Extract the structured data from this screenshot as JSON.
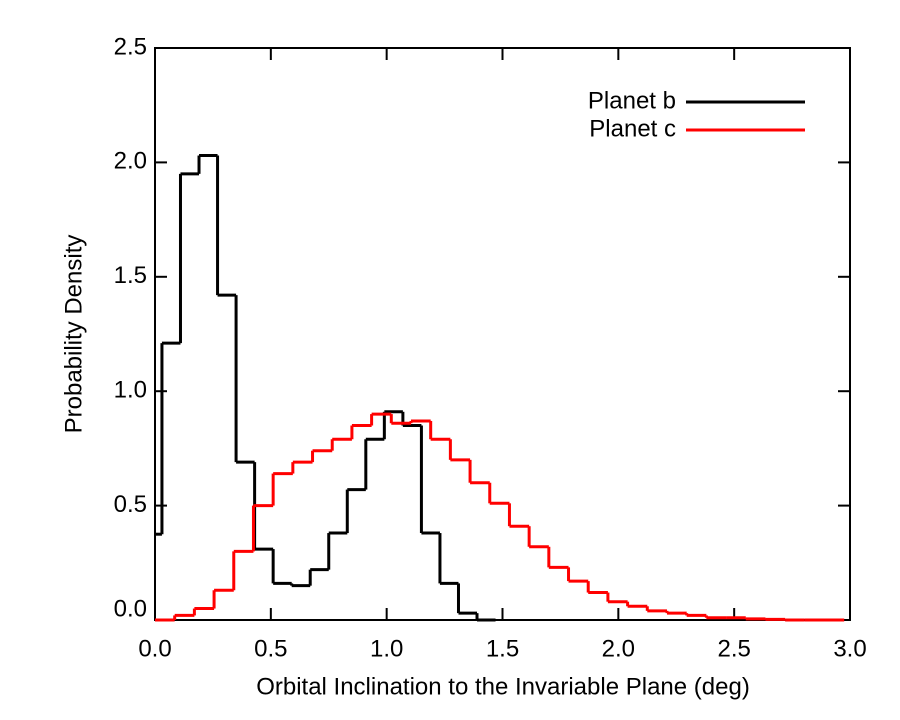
{
  "chart_data": {
    "type": "histogram",
    "xlabel": "Orbital Inclination to the Invariable Plane (deg)",
    "ylabel": "Probability Density",
    "xlim": [
      0,
      3
    ],
    "ylim": [
      0,
      2.5
    ],
    "xticks": [
      {
        "value": 0,
        "label": "0.0"
      },
      {
        "value": 0.5,
        "label": "0.5"
      },
      {
        "value": 1,
        "label": "1.0"
      },
      {
        "value": 1.5,
        "label": "1.5"
      },
      {
        "value": 2,
        "label": "2.0"
      },
      {
        "value": 2.5,
        "label": "2.5"
      },
      {
        "value": 3,
        "label": "3.0"
      }
    ],
    "yticks": [
      {
        "value": 0,
        "label": "0.0"
      },
      0.5,
      {
        "value": 1,
        "label": "1.0"
      },
      1.5,
      {
        "value": 2,
        "label": "2.0"
      },
      2.5
    ],
    "legend": "upper right",
    "series": [
      {
        "name": "Planet b",
        "color": "#000000",
        "bins": [
          0,
          0.03,
          0.11,
          0.19,
          0.27,
          0.35,
          0.43,
          0.51,
          0.59,
          0.67,
          0.75,
          0.83,
          0.91,
          0.99,
          1.07,
          1.15,
          1.23,
          1.31,
          1.39,
          1.47
        ],
        "values": [
          0.375,
          1.21,
          1.95,
          2.03,
          1.42,
          0.69,
          0.31,
          0.16,
          0.15,
          0.22,
          0.38,
          0.57,
          0.79,
          0.91,
          0.85,
          0.38,
          0.16,
          0.03,
          0
        ]
      },
      {
        "name": "Planet c",
        "color": "#ff0000",
        "bins": [
          0,
          0.085,
          0.17,
          0.255,
          0.34,
          0.425,
          0.51,
          0.595,
          0.68,
          0.765,
          0.85,
          0.935,
          1.02,
          1.105,
          1.19,
          1.275,
          1.36,
          1.445,
          1.53,
          1.615,
          1.7,
          1.785,
          1.87,
          1.955,
          2.04,
          2.125,
          2.21,
          2.295,
          2.38,
          2.465,
          2.55,
          2.635,
          2.72,
          2.805,
          2.89,
          2.975
        ],
        "values": [
          0,
          0.02,
          0.05,
          0.13,
          0.3,
          0.5,
          0.64,
          0.69,
          0.74,
          0.79,
          0.85,
          0.9,
          0.86,
          0.87,
          0.79,
          0.7,
          0.6,
          0.51,
          0.41,
          0.32,
          0.23,
          0.17,
          0.12,
          0.08,
          0.06,
          0.04,
          0.03,
          0.02,
          0.01,
          0.01,
          0.005,
          0.003,
          0,
          0,
          0
        ]
      }
    ]
  }
}
